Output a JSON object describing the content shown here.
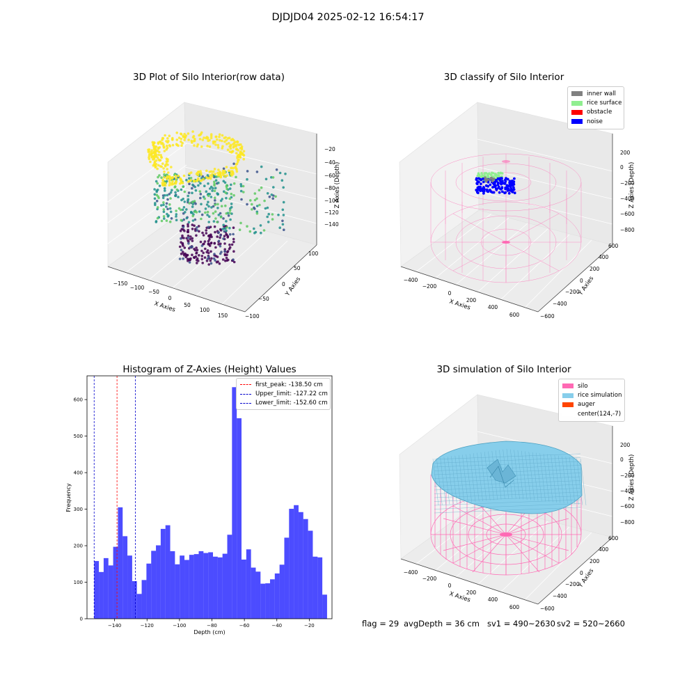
{
  "suptitle": "DJDJD04 2025-02-12 16:54:17",
  "plot_raw": {
    "title": "3D Plot of Silo Interior(row data)",
    "x_ticks": [
      "−150",
      "−100",
      "−50",
      "0",
      "50",
      "100",
      "150"
    ],
    "y_ticks": [
      "−100",
      "−50",
      "0",
      "50",
      "100"
    ],
    "z_ticks": [
      "−20",
      "−40",
      "−60",
      "−80",
      "−100",
      "−120",
      "−140"
    ],
    "x_label": "X Axies",
    "y_label": "Y Axies",
    "z_label": "Z Axies (Depth)",
    "colormap": [
      "#440154",
      "#3b528b",
      "#21918c",
      "#5ec962",
      "#fde725"
    ]
  },
  "plot_classify": {
    "title": "3D classify of Silo Interior",
    "x_ticks": [
      "−400",
      "−200",
      "0",
      "200",
      "400",
      "600"
    ],
    "y_ticks": [
      "−600",
      "−400",
      "−200",
      "0",
      "200",
      "400",
      "600"
    ],
    "z_ticks": [
      "200",
      "0",
      "−200",
      "−400",
      "−600",
      "−800"
    ],
    "x_label": "X Axies",
    "y_label": "Y Axies",
    "z_label": "Z Axies (Depth)",
    "legend": [
      {
        "label": "inner wall",
        "color": "#808080"
      },
      {
        "label": "rice surface",
        "color": "#90ee90"
      },
      {
        "label": "obstacle",
        "color": "#ff0000"
      },
      {
        "label": "noise",
        "color": "#0000ff"
      }
    ],
    "wire_color": "#ff69b4"
  },
  "plot_sim": {
    "title": "3D simulation of Silo Interior",
    "x_ticks": [
      "−400",
      "−200",
      "0",
      "200",
      "400",
      "600"
    ],
    "y_ticks": [
      "−600",
      "−400",
      "−200",
      "0",
      "200",
      "400",
      "600"
    ],
    "z_ticks": [
      "200",
      "0",
      "−200",
      "−400",
      "−600",
      "−800"
    ],
    "x_label": "X Axies",
    "y_label": "Y Axies",
    "z_label": "Z Axies (Depth)",
    "legend": [
      {
        "label": "silo",
        "color": "#ff69b4"
      },
      {
        "label": "rice simulation",
        "color": "#87ceeb"
      },
      {
        "label": "auger",
        "color": "#ff4500"
      },
      {
        "label": "center(124,-7)",
        "color": "#ffffff"
      }
    ]
  },
  "footer": {
    "flag": "flag = 29",
    "avg": "avgDepth = 36 cm",
    "sv1": "sv1 = 490~2630",
    "sv2": "sv2 = 520~2660"
  },
  "chart_data": {
    "type": "bar",
    "title": "Histogram of Z-Axies (Height) Values",
    "xlabel": "Depth (cm)",
    "ylabel": "Frequency",
    "xlim": [
      -157,
      -6
    ],
    "ylim": [
      0,
      665
    ],
    "x_ticks": [
      -140,
      -120,
      -100,
      -80,
      -60,
      -40,
      -20
    ],
    "y_ticks": [
      0,
      100,
      200,
      300,
      400,
      500,
      600
    ],
    "bin_start": -152.6,
    "bin_width": 2.93,
    "values": [
      158,
      128,
      166,
      146,
      197,
      305,
      226,
      173,
      103,
      68,
      106,
      151,
      186,
      201,
      246,
      256,
      185,
      149,
      173,
      161,
      175,
      177,
      185,
      180,
      182,
      170,
      168,
      178,
      230,
      634,
      549,
      162,
      190,
      140,
      129,
      96,
      97,
      108,
      124,
      148,
      222,
      301,
      311,
      292,
      273,
      241,
      170,
      168,
      66
    ],
    "bar_color": "#0000ff",
    "vlines": [
      {
        "x": -138.5,
        "label": "first_peak: -138.50 cm",
        "color": "#ff0000"
      },
      {
        "x": -127.22,
        "label": "Upper_limit: -127.22 cm",
        "color": "#0000cc"
      },
      {
        "x": -152.6,
        "label": "Lower_limit: -152.60 cm",
        "color": "#0000cc"
      }
    ]
  }
}
